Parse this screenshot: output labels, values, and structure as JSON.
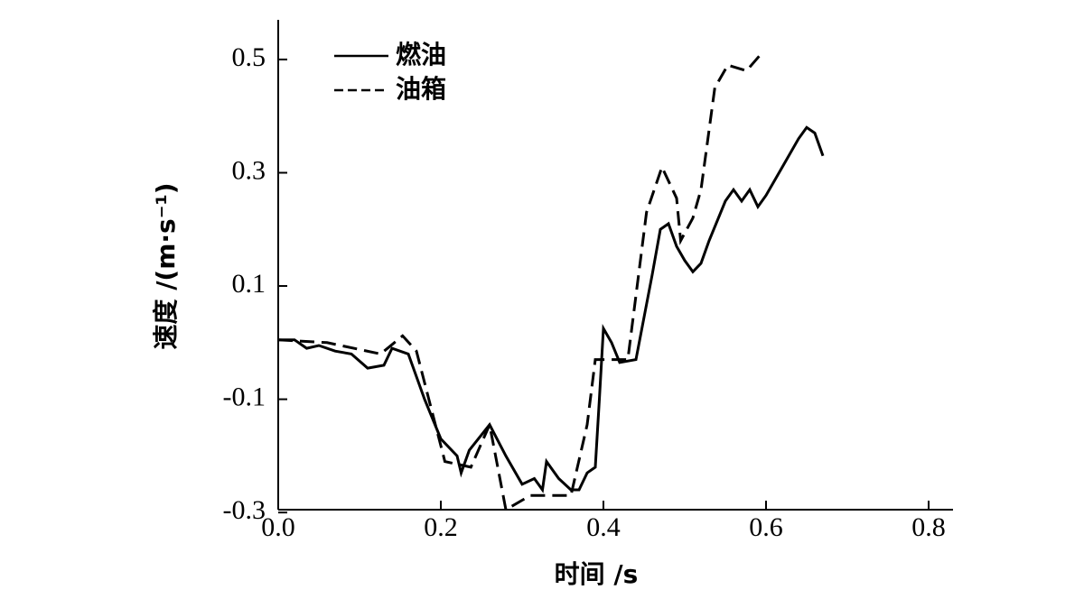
{
  "chart_data": {
    "type": "line",
    "x_label": "时间 /s",
    "y_label": "速度 /(m·s⁻¹)",
    "xlim": [
      0,
      0.83
    ],
    "ylim": [
      -0.295,
      0.57
    ],
    "xticks": [
      {
        "value": 0,
        "label": "0.0"
      },
      0.2,
      0.4,
      0.6,
      0.8
    ],
    "yticks": [
      0.5,
      0.3,
      0.1,
      -0.1,
      -0.3
    ],
    "legend": "upper left",
    "series": [
      {
        "name": "燃油",
        "color": "#000000",
        "dash": "solid",
        "x": [
          0,
          0.02,
          0.035,
          0.05,
          0.07,
          0.09,
          0.11,
          0.13,
          0.14,
          0.16,
          0.18,
          0.2,
          0.22,
          0.225,
          0.235,
          0.26,
          0.28,
          0.3,
          0.315,
          0.325,
          0.33,
          0.345,
          0.36,
          0.37,
          0.38,
          0.39,
          0.395,
          0.4,
          0.41,
          0.42,
          0.44,
          0.46,
          0.47,
          0.48,
          0.49,
          0.5,
          0.51,
          0.52,
          0.53,
          0.55,
          0.56,
          0.57,
          0.58,
          0.59,
          0.6,
          0.62,
          0.64,
          0.65,
          0.66,
          0.67
        ],
        "values": [
          0.005,
          0.005,
          -0.01,
          -0.005,
          -0.015,
          -0.02,
          -0.045,
          -0.04,
          -0.01,
          -0.02,
          -0.1,
          -0.17,
          -0.2,
          -0.23,
          -0.19,
          -0.145,
          -0.2,
          -0.25,
          -0.24,
          -0.26,
          -0.21,
          -0.24,
          -0.26,
          -0.26,
          -0.23,
          -0.22,
          -0.1,
          0.025,
          0.0,
          -0.035,
          -0.03,
          0.12,
          0.2,
          0.21,
          0.17,
          0.145,
          0.125,
          0.14,
          0.18,
          0.25,
          0.27,
          0.25,
          0.27,
          0.24,
          0.26,
          0.31,
          0.36,
          0.38,
          0.37,
          0.33
        ]
      },
      {
        "name": "油箱",
        "color": "#000000",
        "dash": "dashed",
        "x": [
          0,
          0.06,
          0.126,
          0.153,
          0.17,
          0.205,
          0.237,
          0.26,
          0.28,
          0.31,
          0.33,
          0.36,
          0.38,
          0.39,
          0.43,
          0.453,
          0.472,
          0.49,
          0.495,
          0.51,
          0.52,
          0.537,
          0.553,
          0.576,
          0.594
        ],
        "values": [
          0.005,
          0.0,
          -0.02,
          0.012,
          -0.015,
          -0.21,
          -0.22,
          -0.145,
          -0.295,
          -0.27,
          -0.27,
          -0.27,
          -0.145,
          -0.03,
          -0.03,
          0.23,
          0.31,
          0.255,
          0.18,
          0.22,
          0.27,
          0.45,
          0.49,
          0.48,
          0.51
        ]
      }
    ]
  }
}
